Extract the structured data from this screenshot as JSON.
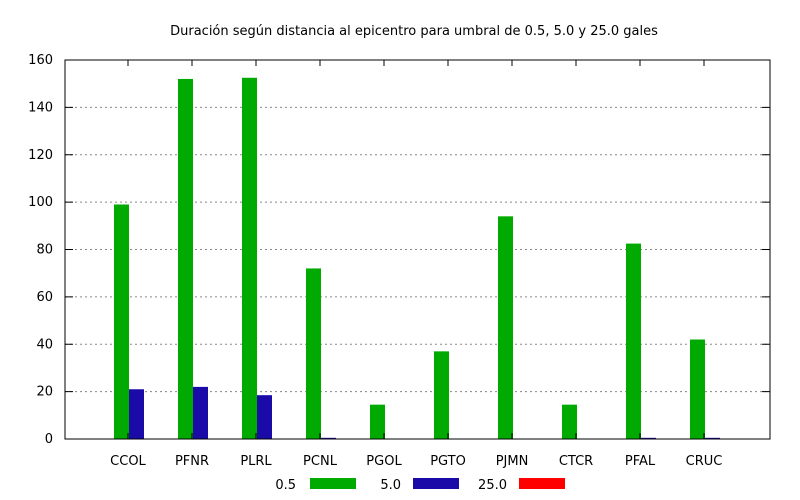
{
  "chart_data": {
    "type": "bar",
    "title": "Duración según distancia al epicentro para umbral de 0.5, 5.0 y 25.0 gales",
    "xlabel": "",
    "ylabel": "",
    "ylim": [
      0,
      160
    ],
    "yticks": [
      0,
      20,
      40,
      60,
      80,
      100,
      120,
      140,
      160
    ],
    "grid": true,
    "legend_position": "bottom",
    "categories": [
      "CCOL",
      "PFNR",
      "PLRL",
      "PCNL",
      "PGOL",
      "PGTO",
      "PJMN",
      "CTCR",
      "PFAL",
      "CRUC"
    ],
    "series": [
      {
        "name": "0.5",
        "color": "#00aa00",
        "values": [
          99,
          152,
          152.5,
          72,
          14.5,
          37,
          94,
          14.5,
          82.5,
          42
        ]
      },
      {
        "name": "5.0",
        "color": "#1a0aa8",
        "values": [
          21,
          22,
          18.5,
          0.5,
          0,
          0,
          0,
          0,
          0.5,
          0.5
        ]
      },
      {
        "name": "25.0",
        "color": "#ff0000",
        "values": [
          0,
          0,
          0,
          0,
          0,
          0,
          0,
          0,
          0,
          0
        ]
      }
    ]
  }
}
